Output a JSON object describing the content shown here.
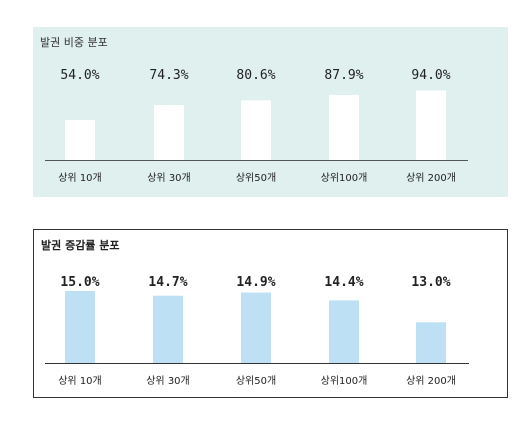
{
  "chart_data": [
    {
      "type": "bar",
      "title": "발권 비중 분포",
      "categories": [
        "상위 10개",
        "상위 30개",
        "상위50개",
        "상위100개",
        "상위 200개"
      ],
      "values": [
        54.0,
        74.3,
        80.6,
        87.9,
        94.0
      ],
      "value_labels": [
        "54.0%",
        "74.3%",
        "80.6%",
        "87.9%",
        "94.0%"
      ],
      "ylim": [
        0,
        100
      ],
      "bar_color": "#ffffff",
      "background": "#dff0ee"
    },
    {
      "type": "bar",
      "title": "발권 증감률 분포",
      "categories": [
        "상위 10개",
        "상위 30개",
        "상위50개",
        "상위100개",
        "상위 200개"
      ],
      "values": [
        15.0,
        14.7,
        14.9,
        14.4,
        13.0
      ],
      "value_labels": [
        "15.0%",
        "14.7%",
        "14.9%",
        "14.4%",
        "13.0%"
      ],
      "ylim": [
        10.4,
        15.0
      ],
      "bar_color": "#bde0f5",
      "background": "#ffffff"
    }
  ]
}
